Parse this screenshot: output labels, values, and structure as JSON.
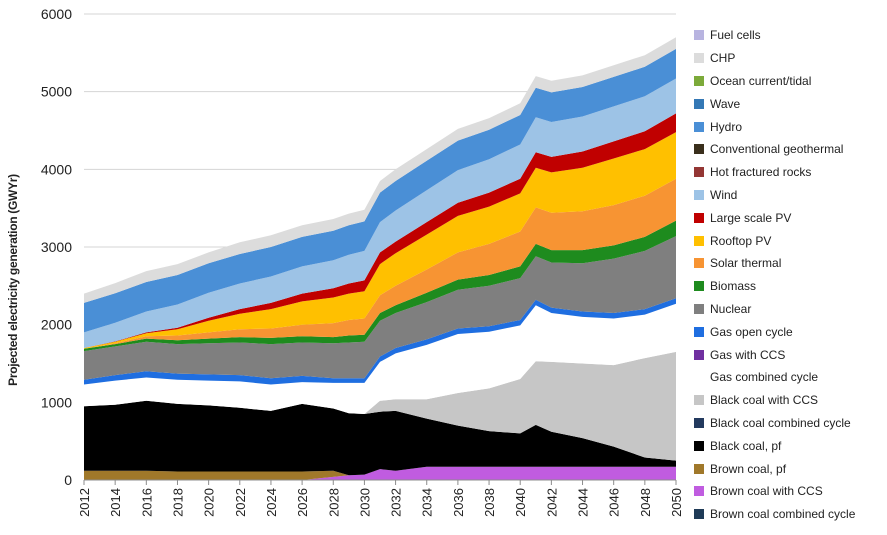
{
  "chart_data": {
    "type": "area",
    "stacked": true,
    "title": "",
    "xlabel": "",
    "ylabel": "Projected electricity generation (GWYr)",
    "ylim": [
      0,
      6000
    ],
    "yticks": [
      0,
      1000,
      2000,
      3000,
      4000,
      5000,
      6000
    ],
    "xlim": [
      2012,
      2050
    ],
    "xticks": [
      2012,
      2014,
      2016,
      2018,
      2020,
      2022,
      2024,
      2026,
      2028,
      2030,
      2032,
      2034,
      2036,
      2038,
      2040,
      2042,
      2044,
      2046,
      2048,
      2050
    ],
    "grid": "horizontal",
    "legend_position": "right",
    "x": [
      2012,
      2014,
      2016,
      2018,
      2020,
      2022,
      2024,
      2026,
      2028,
      2029,
      2030,
      2031,
      2032,
      2034,
      2036,
      2038,
      2040,
      2041,
      2042,
      2044,
      2046,
      2048,
      2050
    ],
    "series": [
      {
        "name": "Brown coal combined cycle",
        "color": "#1f3b57",
        "values": [
          0,
          0,
          0,
          0,
          0,
          0,
          0,
          0,
          0,
          0,
          0,
          0,
          0,
          0,
          0,
          0,
          0,
          0,
          0,
          0,
          0,
          0,
          0
        ]
      },
      {
        "name": "Brown coal with CCS",
        "color": "#c05ce0",
        "values": [
          0,
          0,
          0,
          0,
          0,
          0,
          0,
          0,
          40,
          60,
          70,
          140,
          120,
          170,
          170,
          170,
          170,
          170,
          170,
          170,
          170,
          170,
          170
        ]
      },
      {
        "name": "Brown coal, pf",
        "color": "#a0782a",
        "values": [
          120,
          120,
          120,
          110,
          110,
          110,
          110,
          110,
          80,
          0,
          0,
          0,
          0,
          0,
          0,
          0,
          0,
          0,
          0,
          0,
          0,
          0,
          0
        ]
      },
      {
        "name": "Black coal, pf",
        "color": "#000000",
        "values": [
          830,
          850,
          900,
          870,
          850,
          820,
          780,
          870,
          800,
          800,
          780,
          740,
          770,
          620,
          530,
          460,
          430,
          540,
          450,
          370,
          260,
          120,
          80
        ]
      },
      {
        "name": "Black coal combined cycle",
        "color": "#233a5e",
        "values": [
          0,
          0,
          0,
          0,
          0,
          0,
          0,
          0,
          0,
          0,
          0,
          0,
          0,
          0,
          0,
          0,
          0,
          0,
          0,
          0,
          0,
          0,
          0
        ]
      },
      {
        "name": "Black coal with CCS",
        "color": "#c6c6c6",
        "values": [
          0,
          0,
          0,
          0,
          0,
          0,
          0,
          0,
          0,
          0,
          0,
          140,
          150,
          250,
          420,
          550,
          700,
          820,
          900,
          960,
          1050,
          1280,
          1400
        ]
      },
      {
        "name": "Gas combined cycle",
        "color": "#ffffff",
        "values": [
          280,
          310,
          300,
          310,
          320,
          340,
          340,
          280,
          330,
          390,
          400,
          500,
          590,
          700,
          760,
          730,
          690,
          720,
          630,
          600,
          600,
          560,
          620
        ]
      },
      {
        "name": "Gas with CCS",
        "color": "#7030a0",
        "values": [
          0,
          0,
          0,
          0,
          0,
          0,
          0,
          0,
          0,
          0,
          0,
          0,
          0,
          0,
          0,
          0,
          0,
          0,
          0,
          0,
          0,
          0,
          0
        ]
      },
      {
        "name": "Gas open cycle",
        "color": "#1f6ee0",
        "values": [
          60,
          70,
          80,
          80,
          80,
          80,
          80,
          80,
          60,
          60,
          60,
          70,
          70,
          70,
          70,
          70,
          70,
          70,
          70,
          70,
          70,
          70,
          70
        ]
      },
      {
        "name": "Nuclear",
        "color": "#7f7f7f",
        "values": [
          370,
          370,
          380,
          380,
          400,
          420,
          440,
          430,
          450,
          460,
          470,
          460,
          450,
          480,
          500,
          520,
          540,
          560,
          580,
          620,
          700,
          750,
          800
        ]
      },
      {
        "name": "Biomass",
        "color": "#1e8b1e",
        "values": [
          30,
          30,
          40,
          50,
          60,
          70,
          80,
          80,
          80,
          90,
          90,
          100,
          100,
          120,
          130,
          140,
          150,
          160,
          160,
          170,
          170,
          180,
          200
        ]
      },
      {
        "name": "Solar thermal",
        "color": "#f79433",
        "values": [
          0,
          10,
          30,
          60,
          80,
          100,
          120,
          150,
          180,
          200,
          210,
          230,
          250,
          300,
          350,
          400,
          450,
          470,
          480,
          500,
          520,
          530,
          540
        ]
      },
      {
        "name": "Rooftop PV",
        "color": "#ffc000",
        "values": [
          10,
          20,
          40,
          80,
          150,
          200,
          250,
          300,
          330,
          340,
          350,
          400,
          420,
          450,
          470,
          480,
          490,
          510,
          520,
          560,
          600,
          600,
          600
        ]
      },
      {
        "name": "Large scale PV",
        "color": "#c00000",
        "values": [
          0,
          5,
          10,
          20,
          40,
          60,
          80,
          100,
          120,
          130,
          140,
          150,
          150,
          160,
          170,
          180,
          190,
          200,
          200,
          210,
          220,
          230,
          240
        ]
      },
      {
        "name": "Wind",
        "color": "#9dc3e6",
        "values": [
          200,
          240,
          270,
          300,
          320,
          330,
          340,
          350,
          360,
          370,
          380,
          390,
          400,
          410,
          420,
          430,
          440,
          450,
          450,
          450,
          450,
          450,
          450
        ]
      },
      {
        "name": "Hot fractured rocks",
        "color": "#943634",
        "values": [
          0,
          0,
          0,
          0,
          0,
          0,
          0,
          0,
          0,
          0,
          0,
          0,
          0,
          0,
          0,
          0,
          0,
          0,
          0,
          0,
          0,
          0,
          0
        ]
      },
      {
        "name": "Conventional geothermal",
        "color": "#3a2f1c",
        "values": [
          0,
          0,
          0,
          0,
          0,
          0,
          0,
          0,
          0,
          0,
          0,
          0,
          0,
          0,
          0,
          0,
          0,
          0,
          0,
          0,
          0,
          0,
          0
        ]
      },
      {
        "name": "Hydro",
        "color": "#4a8fd6",
        "values": [
          380,
          380,
          380,
          380,
          380,
          380,
          380,
          380,
          380,
          380,
          380,
          380,
          380,
          380,
          380,
          380,
          380,
          380,
          380,
          380,
          380,
          380,
          380
        ]
      },
      {
        "name": "Wave",
        "color": "#3478b5",
        "values": [
          0,
          0,
          0,
          0,
          0,
          0,
          0,
          0,
          0,
          0,
          0,
          0,
          0,
          0,
          0,
          0,
          0,
          0,
          0,
          0,
          0,
          0,
          0
        ]
      },
      {
        "name": "Ocean current/tidal",
        "color": "#7caa3a",
        "values": [
          0,
          0,
          0,
          0,
          0,
          0,
          0,
          0,
          0,
          0,
          0,
          0,
          0,
          0,
          0,
          0,
          0,
          0,
          0,
          0,
          0,
          0,
          0
        ]
      },
      {
        "name": "CHP",
        "color": "#dcdcdc",
        "values": [
          120,
          130,
          140,
          140,
          140,
          150,
          150,
          150,
          150,
          150,
          150,
          150,
          150,
          150,
          150,
          150,
          150,
          150,
          150,
          150,
          150,
          150,
          150
        ]
      },
      {
        "name": "Fuel cells",
        "color": "#b8b4e0",
        "values": [
          0,
          0,
          0,
          0,
          0,
          0,
          0,
          0,
          0,
          0,
          0,
          0,
          0,
          0,
          0,
          0,
          0,
          0,
          0,
          0,
          0,
          0,
          0
        ]
      }
    ]
  }
}
